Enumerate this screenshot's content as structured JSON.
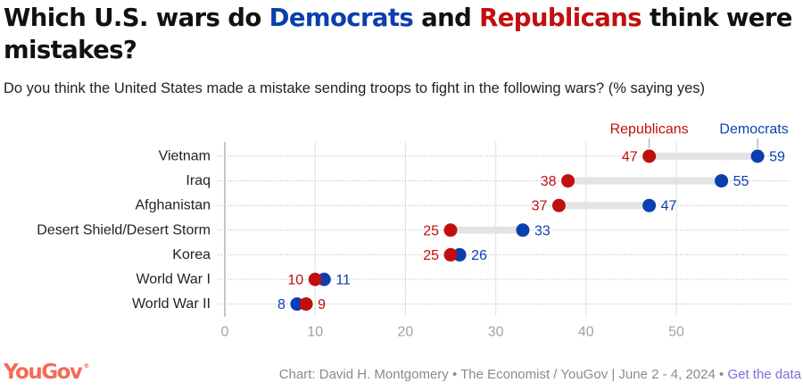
{
  "title": {
    "part1": "Which U.S. wars do ",
    "dem": "Democrats",
    "part2": " and ",
    "rep": "Republicans",
    "part3": " think were mistakes?"
  },
  "subtitle": "Do you think the United States made a mistake sending troops to fight in the following wars? (% saying yes)",
  "colors": {
    "democrats": "#0b3fad",
    "republicans": "#c00f0f",
    "bar": "#e3e3e3",
    "logo": "#f26b57",
    "link": "#7b6fdc"
  },
  "chart_data": {
    "type": "dumbbell",
    "title": "Which U.S. wars do Democrats and Republicans think were mistakes?",
    "xlim": [
      0,
      62
    ],
    "xticks": [
      0,
      10,
      20,
      30,
      40,
      50
    ],
    "xtick_labels": [
      "0",
      "10",
      "20",
      "30",
      "40",
      "50"
    ],
    "grid": true,
    "legend": {
      "republicans": "Republicans",
      "democrats": "Democrats",
      "placement": "above-first-row"
    },
    "categories": [
      "Vietnam",
      "Iraq",
      "Afghanistan",
      "Desert Shield/Desert Storm",
      "Korea",
      "World War I",
      "World War II"
    ],
    "series": [
      {
        "name": "Republicans",
        "values": [
          47,
          38,
          37,
          25,
          25,
          10,
          9
        ],
        "labels": [
          "47",
          "38",
          "37",
          "25",
          "25",
          "10",
          "9"
        ]
      },
      {
        "name": "Democrats",
        "values": [
          59,
          55,
          47,
          33,
          26,
          11,
          8
        ],
        "labels": [
          "59",
          "55",
          "47",
          "33",
          "26",
          "11",
          "8"
        ]
      }
    ]
  },
  "footer": {
    "logo": "YouGov",
    "logo_mark": "®",
    "credit": "Chart: David H. Montgomery • The Economist / YouGov | June 2 - 4, 2024 • ",
    "link": "Get the data"
  }
}
